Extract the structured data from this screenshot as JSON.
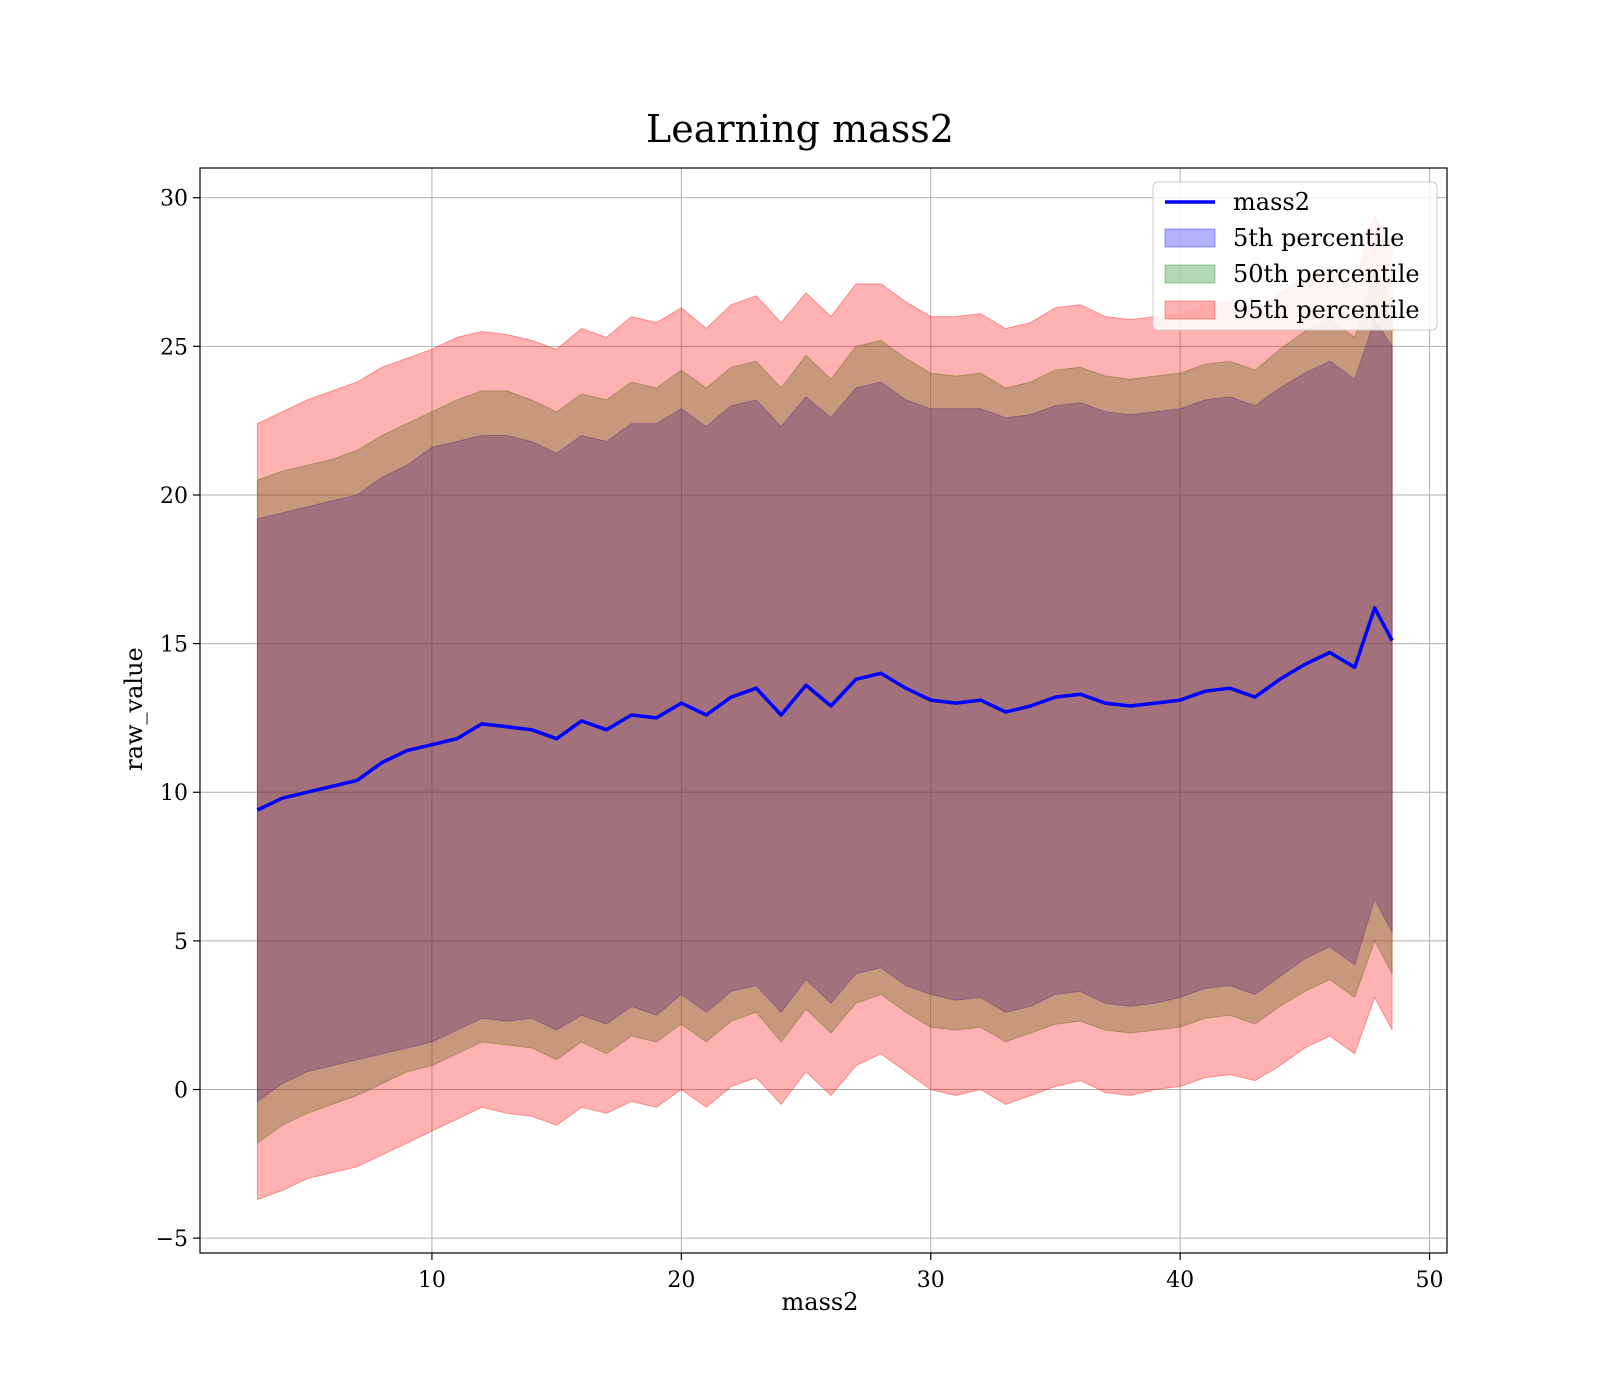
{
  "chart_data": {
    "type": "line",
    "title": "Learning mass2",
    "xlabel": "mass2",
    "ylabel": "raw_value",
    "xlim": [
      0.7,
      50.7
    ],
    "ylim": [
      -5.5,
      31
    ],
    "x_ticks": [
      10,
      20,
      30,
      40,
      50
    ],
    "x_tick_labels": [
      "10",
      "20",
      "30",
      "40",
      "50"
    ],
    "y_ticks": [
      -5,
      0,
      5,
      10,
      15,
      20,
      25,
      30
    ],
    "y_tick_labels": [
      "−5",
      "0",
      "5",
      "10",
      "15",
      "20",
      "25",
      "30"
    ],
    "grid": true,
    "legend_position": "top-right",
    "x": [
      3,
      4,
      5,
      6,
      7,
      8,
      9,
      10,
      11,
      12,
      13,
      14,
      15,
      16,
      17,
      18,
      19,
      20,
      21,
      22,
      23,
      24,
      25,
      26,
      27,
      28,
      29,
      30,
      31,
      32,
      33,
      34,
      35,
      36,
      37,
      38,
      39,
      40,
      41,
      42,
      43,
      44,
      45,
      46,
      47,
      47.8,
      48.5
    ],
    "series": [
      {
        "name": "mass2",
        "kind": "line",
        "color": "#0000ff",
        "values": [
          9.4,
          9.8,
          10.0,
          10.2,
          10.4,
          11.0,
          11.4,
          11.6,
          11.8,
          12.3,
          12.2,
          12.1,
          11.8,
          12.4,
          12.1,
          12.6,
          12.5,
          13.0,
          12.6,
          13.2,
          13.5,
          12.6,
          13.6,
          12.9,
          13.8,
          14.0,
          13.5,
          13.1,
          13.0,
          13.1,
          12.7,
          12.9,
          13.2,
          13.3,
          13.0,
          12.9,
          13.0,
          13.1,
          13.4,
          13.5,
          13.2,
          13.8,
          14.3,
          14.7,
          14.2,
          16.2,
          15.1
        ]
      },
      {
        "name": "5th percentile",
        "kind": "band",
        "color": "#0000ff",
        "lower": [
          -0.4,
          0.2,
          0.6,
          0.8,
          1.0,
          1.2,
          1.4,
          1.6,
          2.0,
          2.4,
          2.3,
          2.4,
          2.0,
          2.5,
          2.2,
          2.8,
          2.5,
          3.2,
          2.6,
          3.3,
          3.5,
          2.6,
          3.7,
          2.9,
          3.9,
          4.1,
          3.5,
          3.2,
          3.0,
          3.1,
          2.6,
          2.8,
          3.2,
          3.3,
          2.9,
          2.8,
          2.9,
          3.1,
          3.4,
          3.5,
          3.2,
          3.8,
          4.4,
          4.8,
          4.2,
          6.4,
          5.3
        ],
        "upper": [
          19.2,
          19.4,
          19.6,
          19.8,
          20.0,
          20.6,
          21.0,
          21.6,
          21.8,
          22.0,
          22.0,
          21.8,
          21.4,
          22.0,
          21.8,
          22.4,
          22.4,
          22.9,
          22.3,
          23.0,
          23.2,
          22.3,
          23.3,
          22.6,
          23.6,
          23.8,
          23.2,
          22.9,
          22.9,
          22.9,
          22.6,
          22.7,
          23.0,
          23.1,
          22.8,
          22.7,
          22.8,
          22.9,
          23.2,
          23.3,
          23.0,
          23.6,
          24.1,
          24.5,
          23.9,
          25.9,
          25.0
        ]
      },
      {
        "name": "50th percentile",
        "kind": "band",
        "color": "#008000",
        "lower": [
          -1.8,
          -1.2,
          -0.8,
          -0.5,
          -0.2,
          0.2,
          0.6,
          0.8,
          1.2,
          1.6,
          1.5,
          1.4,
          1.0,
          1.6,
          1.2,
          1.8,
          1.6,
          2.2,
          1.6,
          2.3,
          2.6,
          1.6,
          2.7,
          1.9,
          2.9,
          3.2,
          2.6,
          2.1,
          2.0,
          2.1,
          1.6,
          1.9,
          2.2,
          2.3,
          2.0,
          1.9,
          2.0,
          2.1,
          2.4,
          2.5,
          2.2,
          2.8,
          3.3,
          3.7,
          3.1,
          5.0,
          3.9
        ],
        "upper": [
          20.5,
          20.8,
          21.0,
          21.2,
          21.5,
          22.0,
          22.4,
          22.8,
          23.2,
          23.5,
          23.5,
          23.2,
          22.8,
          23.4,
          23.2,
          23.8,
          23.6,
          24.2,
          23.6,
          24.3,
          24.5,
          23.6,
          24.7,
          23.9,
          25.0,
          25.2,
          24.6,
          24.1,
          24.0,
          24.1,
          23.6,
          23.8,
          24.2,
          24.3,
          24.0,
          23.9,
          24.0,
          24.1,
          24.4,
          24.5,
          24.2,
          24.9,
          25.5,
          25.9,
          25.3,
          27.6,
          26.6
        ]
      },
      {
        "name": "95th percentile",
        "kind": "band",
        "color": "#ff0000",
        "lower": [
          -3.7,
          -3.4,
          -3.0,
          -2.8,
          -2.6,
          -2.2,
          -1.8,
          -1.4,
          -1.0,
          -0.6,
          -0.8,
          -0.9,
          -1.2,
          -0.6,
          -0.8,
          -0.4,
          -0.6,
          0.0,
          -0.6,
          0.1,
          0.4,
          -0.5,
          0.6,
          -0.2,
          0.8,
          1.2,
          0.6,
          0.0,
          -0.2,
          0.0,
          -0.5,
          -0.2,
          0.1,
          0.3,
          -0.1,
          -0.2,
          0.0,
          0.1,
          0.4,
          0.5,
          0.3,
          0.8,
          1.4,
          1.8,
          1.2,
          3.1,
          2.0
        ],
        "upper": [
          22.4,
          22.8,
          23.2,
          23.5,
          23.8,
          24.3,
          24.6,
          24.9,
          25.3,
          25.5,
          25.4,
          25.2,
          24.9,
          25.6,
          25.3,
          26.0,
          25.8,
          26.3,
          25.6,
          26.4,
          26.7,
          25.8,
          26.8,
          26.0,
          27.1,
          27.1,
          26.5,
          26.0,
          26.0,
          26.1,
          25.6,
          25.8,
          26.3,
          26.4,
          26.0,
          25.9,
          26.0,
          26.1,
          26.4,
          26.5,
          26.2,
          26.8,
          27.3,
          27.7,
          27.1,
          29.4,
          28.3
        ]
      }
    ]
  }
}
